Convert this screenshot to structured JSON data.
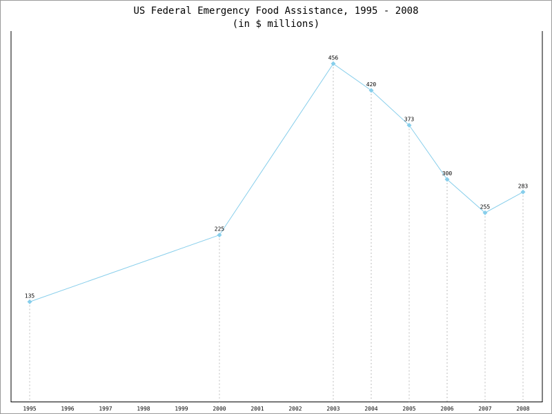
{
  "chart_data": {
    "type": "line",
    "title": "US Federal Emergency Food Assistance, 1995 - 2008",
    "subtitle": "(in $ millions)",
    "xlabel": "",
    "ylabel": "",
    "categories": [
      "1995",
      "1996",
      "1997",
      "1998",
      "1999",
      "2000",
      "2001",
      "2002",
      "2003",
      "2004",
      "2005",
      "2006",
      "2007",
      "2008"
    ],
    "points": [
      {
        "x": "1995",
        "y": 135
      },
      {
        "x": "2000",
        "y": 225
      },
      {
        "x": "2003",
        "y": 456
      },
      {
        "x": "2004",
        "y": 420
      },
      {
        "x": "2005",
        "y": 373
      },
      {
        "x": "2006",
        "y": 300
      },
      {
        "x": "2007",
        "y": 255
      },
      {
        "x": "2008",
        "y": 283
      }
    ],
    "ylim": [
      0,
      500
    ],
    "grid": "vertical dotted drop lines at data points",
    "legend": "none",
    "colors": {
      "line": "#87CEEB",
      "marker": "#87CEEB",
      "dropline": "#bbbbbb"
    }
  }
}
